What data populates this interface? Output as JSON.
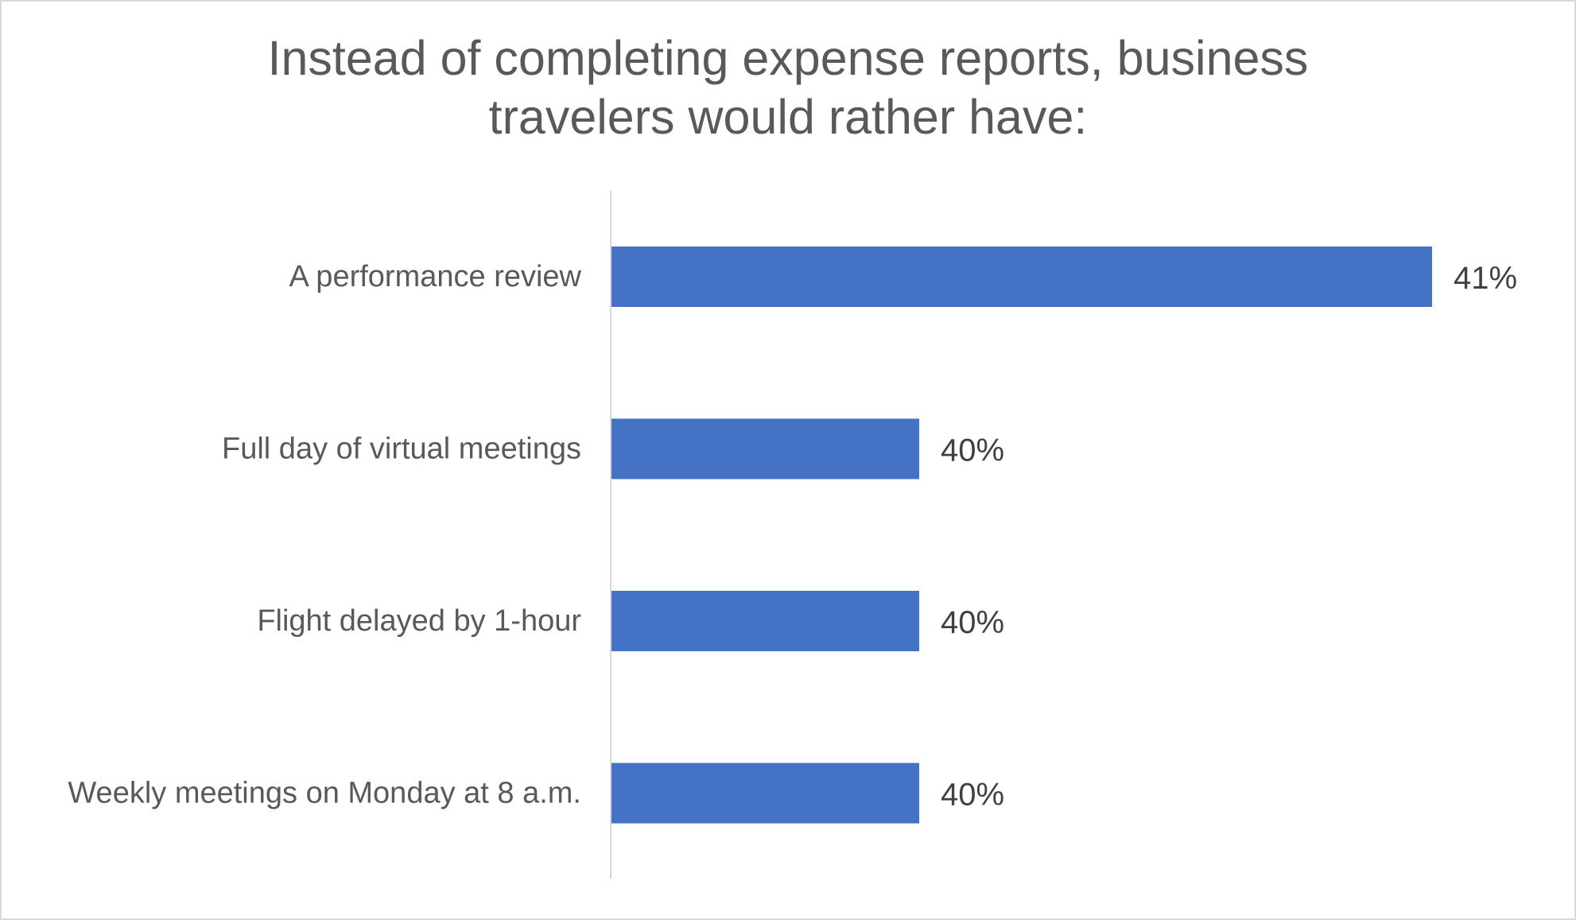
{
  "chart_data": {
    "type": "bar",
    "orientation": "horizontal",
    "title_lines": [
      "Instead of completing expense reports, business",
      "travelers would rather have:"
    ],
    "categories": [
      "A performance review",
      "Full day of virtual meetings",
      "Flight delayed by 1-hour",
      "Weekly meetings on Monday at 8 a.m."
    ],
    "values": [
      41,
      40,
      40,
      40
    ],
    "value_labels": [
      "41%",
      "40%",
      "40%",
      "40%"
    ],
    "xlim": [
      39.4,
      41.0
    ],
    "bar_color": "#4472c4",
    "axis_color": "#d9d9d9",
    "grid": false,
    "legend": "none"
  }
}
